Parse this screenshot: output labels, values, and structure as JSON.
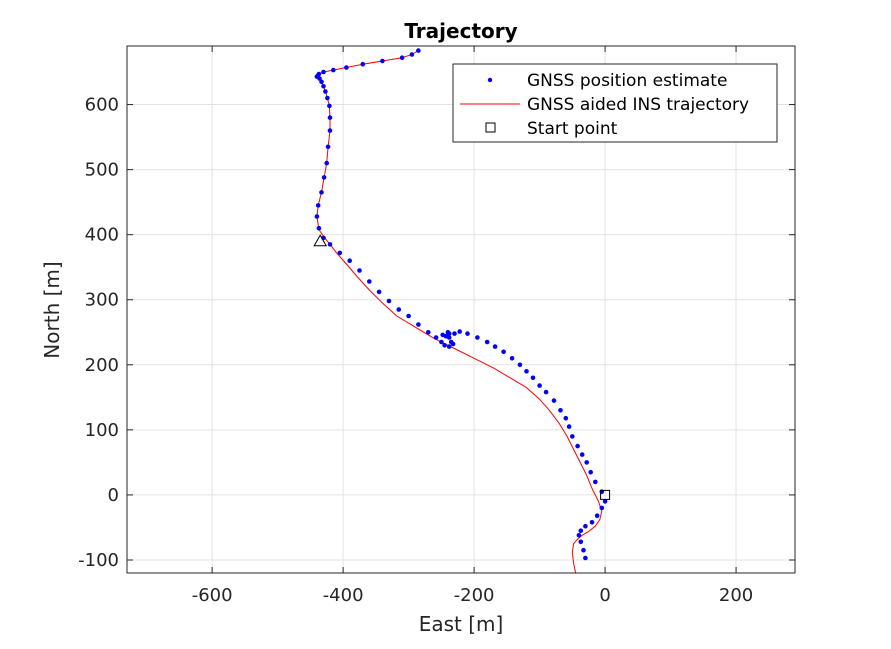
{
  "chart_data": {
    "type": "line",
    "title": "Trajectory",
    "xlabel": "East [m]",
    "ylabel": "North [m]",
    "xlim": [
      -730,
      290
    ],
    "ylim": [
      -120,
      690
    ],
    "xticks": [
      -600,
      -400,
      -200,
      0,
      200
    ],
    "yticks": [
      -100,
      0,
      100,
      200,
      300,
      400,
      500,
      600
    ],
    "grid": true,
    "legend_position": "top-right",
    "series": [
      {
        "name": "GNSS position estimate",
        "style": "points",
        "color": "#0000ff",
        "x": [
          -30,
          -33,
          -37,
          -40,
          -37,
          -30,
          -20,
          -12,
          -5,
          0,
          -5,
          -15,
          -22,
          -28,
          -35,
          -42,
          -50,
          -55,
          -60,
          -68,
          -78,
          -90,
          -100,
          -110,
          -120,
          -130,
          -142,
          -155,
          -168,
          -180,
          -195,
          -210,
          -222,
          -230,
          -238,
          -235,
          -232,
          -238,
          -245,
          -250,
          -243,
          -238,
          -240,
          -248,
          -258,
          -270,
          -285,
          -300,
          -315,
          -330,
          -345,
          -360,
          -375,
          -390,
          -405,
          -420,
          -430,
          -437,
          -440,
          -438,
          -433,
          -429,
          -425,
          -423,
          -420,
          -420,
          -421,
          -424,
          -427,
          -430,
          -433,
          -436,
          -438,
          -440,
          -437,
          -430,
          -415,
          -395,
          -370,
          -340,
          -310,
          -295,
          -285
        ],
        "y": [
          -97,
          -85,
          -72,
          -62,
          -55,
          -48,
          -42,
          -32,
          -20,
          -10,
          5,
          20,
          35,
          50,
          62,
          75,
          90,
          105,
          118,
          130,
          145,
          158,
          168,
          180,
          190,
          200,
          210,
          220,
          228,
          235,
          242,
          248,
          251,
          248,
          242,
          235,
          232,
          228,
          230,
          235,
          244,
          248,
          250,
          246,
          242,
          250,
          262,
          275,
          285,
          298,
          312,
          328,
          345,
          360,
          372,
          385,
          395,
          410,
          428,
          445,
          465,
          488,
          510,
          535,
          560,
          580,
          598,
          610,
          620,
          628,
          635,
          640,
          645,
          643,
          647,
          650,
          653,
          657,
          662,
          667,
          672,
          677,
          683
        ]
      },
      {
        "name": "GNSS aided INS trajectory",
        "style": "line",
        "color": "#ff0000",
        "x": [
          -45,
          -48,
          -50,
          -48,
          -42,
          -35,
          -25,
          -15,
          -8,
          -5,
          -10,
          -20,
          -28,
          -38,
          -48,
          -58,
          -70,
          -85,
          -100,
          -120,
          -145,
          -170,
          -200,
          -230,
          -260,
          -290,
          -318,
          -340,
          -360,
          -378,
          -395,
          -410,
          -420,
          -428,
          -433,
          -437,
          -440,
          -438,
          -433,
          -429,
          -425,
          -423,
          -420,
          -420,
          -421,
          -424,
          -427,
          -430,
          -433,
          -436,
          -438,
          -440,
          -437,
          -430,
          -415,
          -395,
          -370,
          -340,
          -310,
          -295,
          -285
        ],
        "y": [
          -120,
          -105,
          -88,
          -75,
          -68,
          -62,
          -56,
          -48,
          -38,
          -25,
          -10,
          10,
          30,
          50,
          70,
          90,
          110,
          130,
          147,
          165,
          180,
          195,
          210,
          225,
          240,
          258,
          275,
          295,
          315,
          335,
          355,
          372,
          385,
          395,
          402,
          408,
          428,
          445,
          465,
          488,
          510,
          535,
          560,
          580,
          598,
          610,
          620,
          628,
          635,
          640,
          645,
          643,
          647,
          650,
          653,
          657,
          662,
          667,
          672,
          677,
          683
        ]
      },
      {
        "name": "Start point",
        "style": "square-marker",
        "color": "#000000",
        "x": [
          0
        ],
        "y": [
          0
        ]
      },
      {
        "style": "triangle-marker",
        "color": "#000000",
        "x": [
          -435
        ],
        "y": [
          390
        ]
      }
    ]
  }
}
